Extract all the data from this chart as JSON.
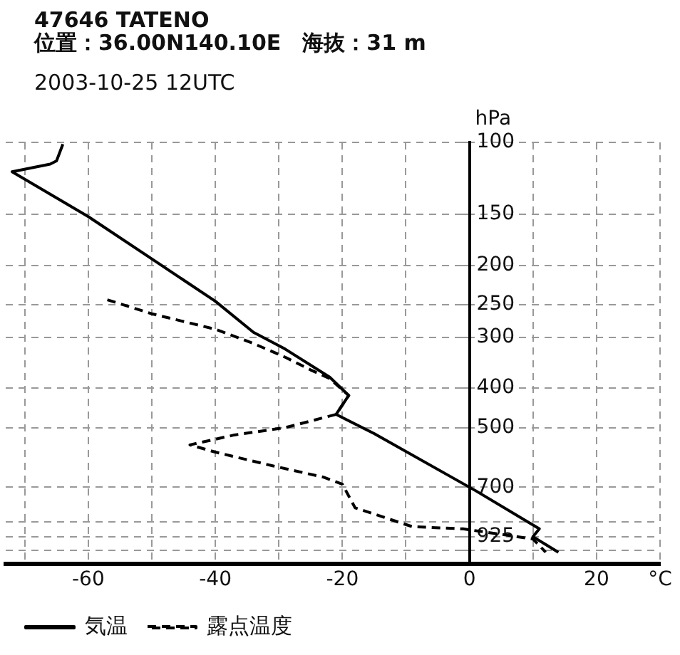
{
  "chart_data": {
    "type": "line",
    "title": "47646 TATENO",
    "subtitle": "位置：36.00N140.10E　海抜：31 m",
    "annotations": [
      "2003-10-25 12UTC"
    ],
    "ylabel": "hPa",
    "xlim": [
      -73,
      30
    ],
    "xticks": [
      {
        "value": -70,
        "label": null
      },
      -60,
      {
        "value": -50,
        "label": null
      },
      -40,
      {
        "value": -30,
        "label": null
      },
      -20,
      {
        "value": -10,
        "label": null
      },
      0,
      {
        "value": 10,
        "label": null
      },
      20,
      {
        "value": 30,
        "label": "°C"
      }
    ],
    "ylim": [
      1080,
      100
    ],
    "yticks": [
      100,
      150,
      200,
      250,
      300,
      400,
      500,
      700,
      {
        "value": 850,
        "label": null
      },
      925,
      {
        "value": 1000,
        "label": null
      }
    ],
    "log": "y",
    "grid": true,
    "legend": "bottom",
    "marker": "none",
    "series": [
      {
        "name": "気温",
        "color": "#000000",
        "line_style": "solid",
        "x": [
          -64,
          -65,
          -66,
          -72,
          -60,
          -50,
          -40,
          -34,
          -29,
          -22,
          -19,
          -21,
          -15,
          1,
          11,
          10,
          14
        ],
        "values": [
          101,
          111,
          113,
          118,
          152,
          193,
          245,
          292,
          321,
          376,
          417,
          464,
          517,
          714,
          885,
          925,
          1010
        ]
      },
      {
        "name": "露点温度",
        "color": "#000000",
        "line_style": "dashed",
        "x": [
          -57,
          -50,
          -40,
          -34,
          -29,
          -25,
          -22,
          -19,
          -21,
          -29,
          -37,
          -44,
          -40,
          -31,
          -23,
          -20,
          -18,
          -9,
          -1,
          10,
          12
        ],
        "values": [
          243,
          263,
          287,
          311,
          336,
          361,
          379,
          417,
          464,
          500,
          521,
          551,
          574,
          620,
          661,
          688,
          786,
          874,
          885,
          937,
          1010
        ]
      }
    ]
  }
}
